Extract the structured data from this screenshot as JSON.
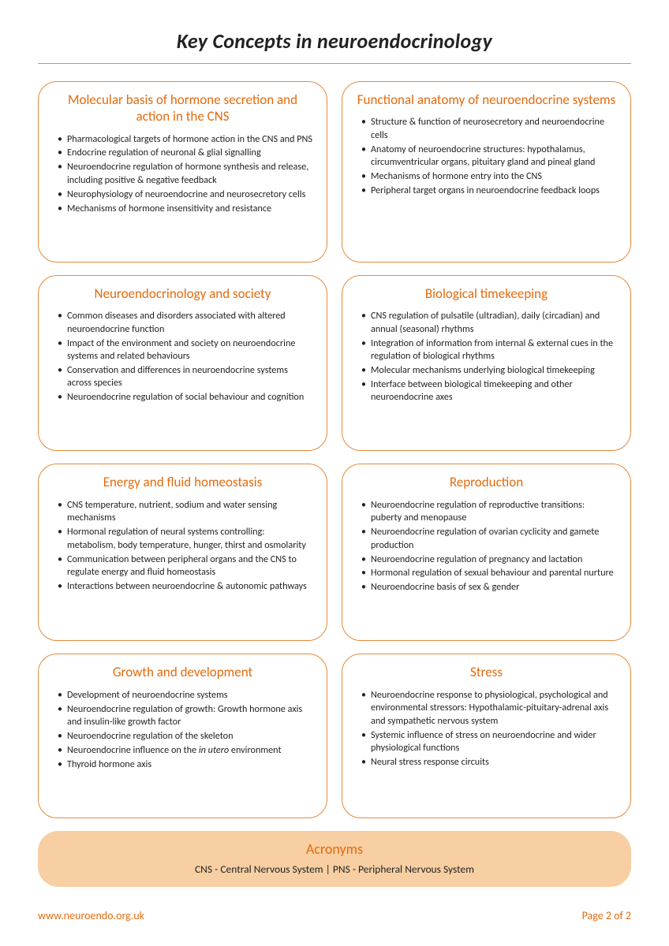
{
  "page": {
    "title": "Key Concepts in neuroendocrinology",
    "border_color": "#e68a3a",
    "accent_color": "#e46b0e",
    "acronyms_bg": "#f7cfa3",
    "background": "#ffffff",
    "title_fontsize": 26,
    "card_title_fontsize": 17,
    "bullet_fontsize": 12.2
  },
  "cards": [
    {
      "title": "Molecular basis of hormone secretion and action in the CNS",
      "bullets": [
        "Pharmacological targets of hormone action in the CNS and PNS",
        "Endocrine regulation of neuronal & glial signalling",
        "Neuroendocrine regulation of hormone synthesis and release, including positive & negative feedback",
        "Neurophysiology of neuroendocrine and neurosecretory cells",
        "Mechanisms of hormone insensitivity and resistance"
      ]
    },
    {
      "title": "Functional anatomy of neuroendocrine systems",
      "bullets": [
        "Structure & function of neurosecretory and neuroendocrine cells",
        "Anatomy of neuroendocrine structures: hypothalamus, circumventricular organs, pituitary gland and pineal gland",
        "Mechanisms of hormone entry into the CNS",
        "Peripheral target organs in neuroendocrine feedback loops"
      ]
    },
    {
      "title": "Neuroendocrinology and society",
      "bullets": [
        "Common diseases and disorders associated with altered neuroendocrine function",
        "Impact of the environment and society on neuroendocrine systems and related behaviours",
        "Conservation and differences in neuroendocrine systems across species",
        "Neuroendocrine regulation of social behaviour and cognition"
      ]
    },
    {
      "title": "Biological timekeeping",
      "bullets": [
        "CNS regulation of pulsatile (ultradian), daily (circadian) and annual (seasonal) rhythms",
        "Integration of information from internal & external cues in the regulation of biological rhythms",
        "Molecular mechanisms underlying biological timekeeping",
        "Interface between biological timekeeping and other neuroendocrine axes"
      ]
    },
    {
      "title": "Energy and fluid homeostasis",
      "bullets": [
        "CNS temperature, nutrient, sodium and water sensing mechanisms",
        "Hormonal regulation of neural systems controlling: metabolism, body temperature, hunger, thirst and osmolarity",
        "Communication between peripheral organs and the CNS to regulate energy and fluid homeostasis",
        "Interactions between neuroendocrine & autonomic pathways"
      ]
    },
    {
      "title": "Reproduction",
      "bullets": [
        "Neuroendocrine regulation of reproductive transitions: puberty and menopause",
        "Neuroendocrine regulation of ovarian cyclicity and gamete production",
        "Neuroendocrine regulation of pregnancy and lactation",
        "Hormonal regulation of sexual behaviour and parental nurture",
        "Neuroendocrine basis of sex & gender"
      ]
    },
    {
      "title": "Growth and development",
      "bullets": [
        "Development of neuroendocrine systems",
        "Neuroendocrine regulation of growth: Growth hormone axis and insulin-like growth factor",
        "Neuroendocrine regulation of the skeleton",
        "Neuroendocrine influence on the <span class=\"italic\">in utero</span> environment",
        "Thyroid hormone axis"
      ]
    },
    {
      "title": "Stress",
      "bullets": [
        "Neuroendocrine response to physiological, psychological and environmental stressors: Hypothalamic-pituitary-adrenal axis and sympathetic nervous system",
        "Systemic influence of stress on neuroendocrine and wider physiological functions",
        "Neural stress response circuits"
      ]
    }
  ],
  "acronyms": {
    "title": "Acronyms",
    "text": "CNS - Central Nervous System | PNS - Peripheral Nervous System"
  },
  "footer": {
    "url": "www.neuroendo.org.uk",
    "page": "Page 2 of 2"
  }
}
